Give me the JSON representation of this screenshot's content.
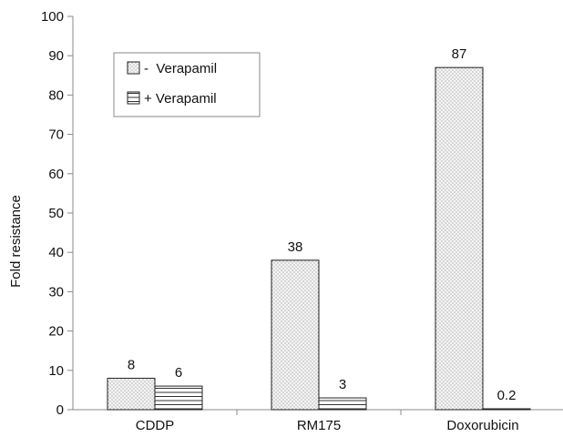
{
  "chart_data": {
    "type": "bar",
    "categories": [
      "CDDP",
      "RM175",
      "Doxorubicin"
    ],
    "series": [
      {
        "name": "-  Verapamil",
        "values": [
          8,
          38,
          87
        ],
        "pattern": "dots"
      },
      {
        "name": "+ Verapamil",
        "values": [
          6,
          3,
          0.2
        ],
        "pattern": "hlines"
      }
    ],
    "data_labels": [
      [
        "8",
        "38",
        "87"
      ],
      [
        "6",
        "3",
        "0.2"
      ]
    ],
    "ylabel": "Fold resistance",
    "xlabel": "",
    "ylim": [
      0,
      100
    ],
    "yticks": [
      0,
      10,
      20,
      30,
      40,
      50,
      60,
      70,
      80,
      90,
      100
    ],
    "grid": false,
    "legend_position": "top-left",
    "colors": {
      "bar_fill": "#f2f2f2",
      "stroke": "#222222",
      "pattern": "#555555",
      "axis": "#888888"
    }
  }
}
